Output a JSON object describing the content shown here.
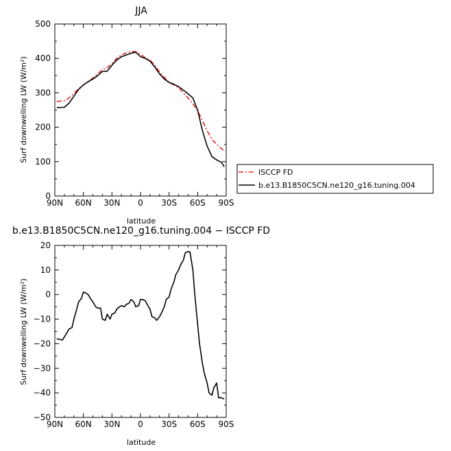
{
  "chart_data": [
    {
      "type": "line",
      "title": "JJA",
      "xlabel": "latitude",
      "ylabel": "Surf downwelling LW (W/m²)",
      "xlim": [
        90,
        -90
      ],
      "ylim": [
        0,
        500
      ],
      "x_ticks": [
        90,
        60,
        30,
        0,
        -30,
        -60,
        -90
      ],
      "x_tick_labels": [
        "90N",
        "60N",
        "30N",
        "0",
        "30S",
        "60S",
        "90S"
      ],
      "y_ticks": [
        0,
        100,
        200,
        300,
        400,
        500
      ],
      "y_tick_labels": [
        "0",
        "100",
        "200",
        "300",
        "400",
        "500"
      ],
      "legend_position": "right",
      "series": [
        {
          "name": "ISCCP FD",
          "color": "#e8201c",
          "dash": "dash-dot",
          "x": [
            88,
            80,
            75,
            70,
            65,
            60,
            55,
            50,
            45,
            40,
            35,
            30,
            25,
            20,
            15,
            10,
            5,
            0,
            -5,
            -10,
            -15,
            -20,
            -25,
            -30,
            -35,
            -40,
            -45,
            -50,
            -55,
            -60,
            -65,
            -70,
            -75,
            -80,
            -85,
            -88
          ],
          "y": [
            275,
            277,
            285,
            298,
            312,
            323,
            333,
            343,
            355,
            368,
            373,
            385,
            400,
            410,
            416,
            420,
            420,
            412,
            402,
            395,
            380,
            360,
            345,
            330,
            323,
            315,
            300,
            285,
            268,
            248,
            220,
            190,
            165,
            150,
            138,
            130
          ]
        },
        {
          "name": "b.e13.B1850C5CN.ne120_g16.tuning.004",
          "color": "#000000",
          "dash": "solid",
          "x": [
            88,
            80,
            75,
            70,
            65,
            60,
            55,
            50,
            45,
            40,
            35,
            30,
            25,
            20,
            15,
            10,
            5,
            0,
            -5,
            -10,
            -15,
            -20,
            -25,
            -30,
            -35,
            -40,
            -45,
            -50,
            -55,
            -60,
            -65,
            -70,
            -75,
            -80,
            -85,
            -88
          ],
          "y": [
            257,
            258,
            270,
            290,
            310,
            323,
            332,
            340,
            350,
            362,
            363,
            380,
            395,
            405,
            410,
            415,
            418,
            405,
            400,
            392,
            375,
            355,
            340,
            330,
            325,
            318,
            308,
            297,
            285,
            250,
            190,
            145,
            115,
            105,
            98,
            85
          ]
        }
      ]
    },
    {
      "type": "line",
      "title": "b.e13.B1850C5CN.ne120_g16.tuning.004 − ISCCP FD",
      "xlabel": "latitude",
      "ylabel": "Surf downwelling LW (W/m²)",
      "xlim": [
        90,
        -90
      ],
      "ylim": [
        -50,
        20
      ],
      "x_ticks": [
        90,
        60,
        30,
        0,
        -30,
        -60,
        -90
      ],
      "x_tick_labels": [
        "90N",
        "60N",
        "30N",
        "0",
        "30S",
        "60S",
        "90S"
      ],
      "y_ticks": [
        -50,
        -40,
        -30,
        -20,
        -10,
        0,
        10,
        20
      ],
      "y_tick_labels": [
        "−50",
        "−40",
        "−30",
        "−20",
        "−10",
        "0",
        "10",
        "20"
      ],
      "series": [
        {
          "color": "#000000",
          "dash": "solid",
          "x": [
            88,
            85,
            82,
            78,
            75,
            72,
            70,
            67,
            65,
            62,
            60,
            57,
            55,
            52,
            50,
            47,
            45,
            42,
            40,
            37,
            35,
            32,
            30,
            27,
            25,
            22,
            20,
            17,
            15,
            12,
            10,
            7,
            5,
            2,
            0,
            -2,
            -5,
            -7,
            -10,
            -12,
            -15,
            -17,
            -20,
            -22,
            -25,
            -27,
            -30,
            -32,
            -35,
            -37,
            -40,
            -42,
            -45,
            -47,
            -50,
            -52,
            -55,
            -57,
            -60,
            -62,
            -65,
            -67,
            -70,
            -72,
            -75,
            -77,
            -80,
            -82,
            -85,
            -88
          ],
          "y": [
            -18,
            -18.2,
            -18.5,
            -16,
            -14,
            -13.5,
            -10,
            -6,
            -3,
            -1.5,
            1,
            0.5,
            0,
            -2,
            -3,
            -5,
            -5.5,
            -5.5,
            -10,
            -10.5,
            -8,
            -10,
            -8,
            -7.5,
            -6,
            -5,
            -4.5,
            -5,
            -4,
            -3.5,
            -2,
            -3,
            -5,
            -4.5,
            -2,
            -2,
            -2.5,
            -4,
            -6,
            -9,
            -9.5,
            -10.5,
            -9,
            -7.5,
            -5,
            -2,
            -1,
            2,
            5,
            8,
            10,
            12,
            14,
            17,
            17.5,
            17.3,
            10,
            0,
            -12,
            -20,
            -28,
            -32,
            -36,
            -40,
            -41,
            -38,
            -36,
            -42,
            -42,
            -42.5
          ]
        }
      ]
    }
  ]
}
